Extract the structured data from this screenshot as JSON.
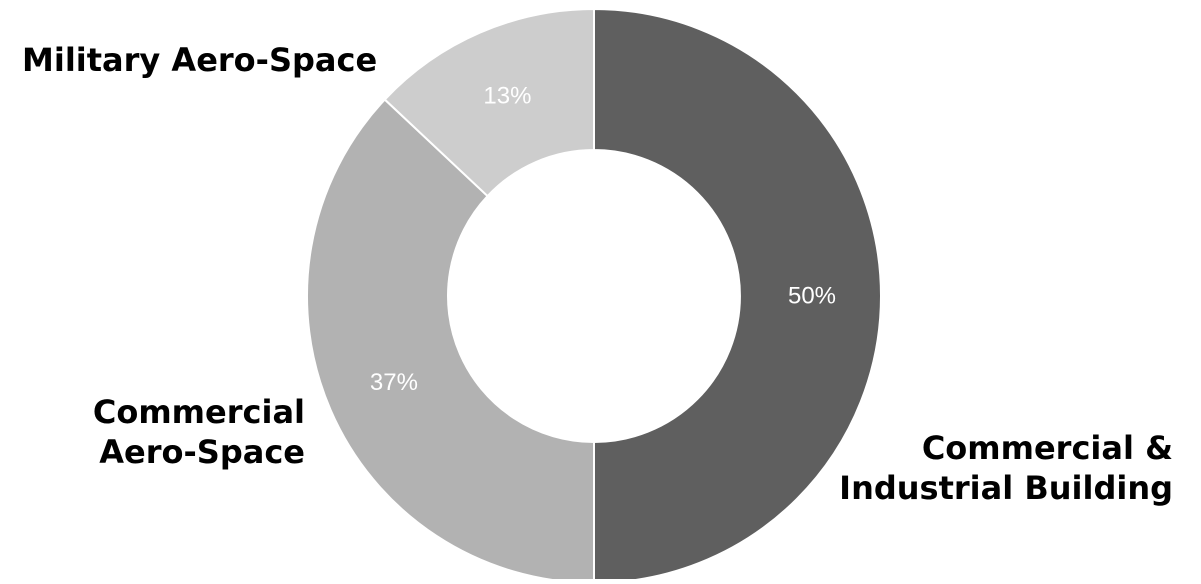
{
  "chart_data": {
    "type": "pie",
    "donut": true,
    "legend": "none",
    "slices": [
      {
        "category": "Commercial & Industrial Building",
        "label_lines": [
          "Commercial &",
          "Industrial Building"
        ],
        "value": 50,
        "value_label": "50%",
        "color": "#5f5f5f"
      },
      {
        "category": "Commercial Aero-Space",
        "label_lines": [
          "Commercial",
          "Aero-Space"
        ],
        "value": 37,
        "value_label": "37%",
        "color": "#b2b2b2"
      },
      {
        "category": "Military Aero-Space",
        "label_lines": [
          "Military Aero-Space"
        ],
        "value": 13,
        "value_label": "13%",
        "color": "#cdcdcd"
      }
    ],
    "value_label_color": "#ffffff"
  }
}
